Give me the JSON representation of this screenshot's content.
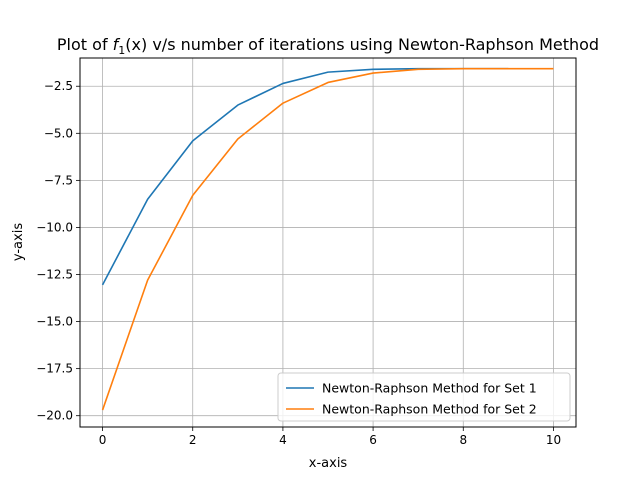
{
  "chart_data": {
    "type": "line",
    "title_prefix": "Plot of ",
    "title_func": "f",
    "title_sub": "1",
    "title_rest": "(x) v/s number of iterations using Newton-Raphson Method",
    "xlabel": "x-axis",
    "ylabel": "y-axis",
    "xlim": [
      -0.5,
      10.5
    ],
    "ylim": [
      -20.6,
      -1.0
    ],
    "xticks": [
      0,
      2,
      4,
      6,
      8,
      10
    ],
    "xtick_labels": [
      "0",
      "2",
      "4",
      "6",
      "8",
      "10"
    ],
    "yticks": [
      -20.0,
      -17.5,
      -15.0,
      -12.5,
      -10.0,
      -7.5,
      -5.0,
      -2.5
    ],
    "ytick_labels": [
      "−20.0",
      "−17.5",
      "−15.0",
      "−12.5",
      "−10.0",
      "−7.5",
      "−5.0",
      "−2.5"
    ],
    "grid": true,
    "legend_position": "lower-right",
    "series": [
      {
        "name": "Newton-Raphson Method for Set 1",
        "color": "#1f77b4",
        "x": [
          0,
          1,
          2,
          3,
          4,
          5,
          6,
          7,
          8,
          9
        ],
        "y": [
          -13.05,
          -8.5,
          -5.4,
          -3.5,
          -2.35,
          -1.75,
          -1.6,
          -1.57,
          -1.57,
          -1.57
        ]
      },
      {
        "name": "Newton-Raphson Method for Set 2",
        "color": "#ff7f0e",
        "x": [
          0,
          1,
          2,
          3,
          4,
          5,
          6,
          7,
          8,
          9,
          10
        ],
        "y": [
          -19.7,
          -12.8,
          -8.3,
          -5.3,
          -3.4,
          -2.3,
          -1.8,
          -1.6,
          -1.57,
          -1.57,
          -1.57
        ]
      }
    ]
  }
}
